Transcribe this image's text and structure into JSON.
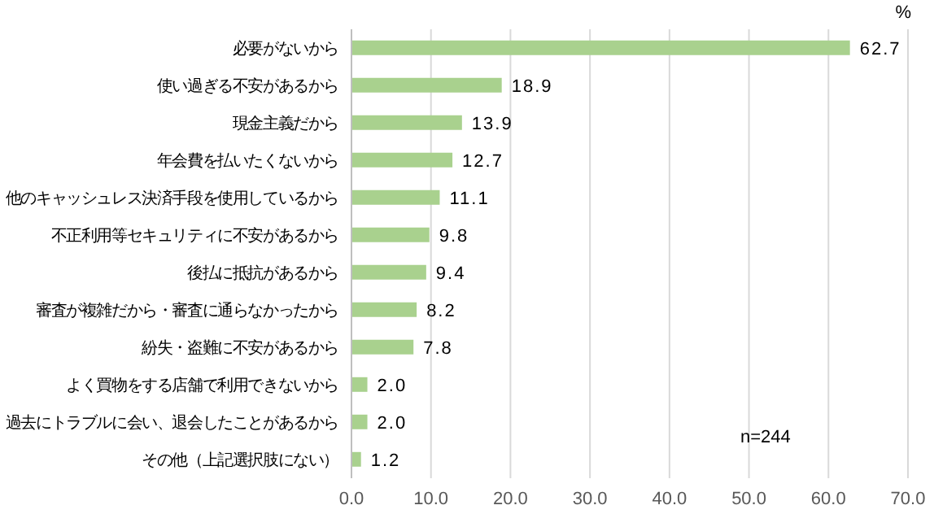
{
  "chart_data": {
    "type": "bar",
    "orientation": "horizontal",
    "xlabel": "%",
    "categories": [
      "必要がないから",
      "使い過ぎる不安があるから",
      "現金主義だから",
      "年会費を払いたくないから",
      "他のキャッシュレス決済手段を使用しているから",
      "不正利用等セキュリティに不安があるから",
      "後払に抵抗があるから",
      "審査が複雑だから・審査に通らなかったから",
      "紛失・盗難に不安があるから",
      "よく買物をする店舗で利用できないから",
      "過去にトラブルに会い、退会したことがあるから",
      "その他（上記選択肢にない）"
    ],
    "values": [
      62.7,
      18.9,
      13.9,
      12.7,
      11.1,
      9.8,
      9.4,
      8.2,
      7.8,
      2.0,
      2.0,
      1.2
    ],
    "value_labels": [
      "62.7",
      "18.9",
      "13.9",
      "12.7",
      "11.1",
      "9.8",
      "9.4",
      "8.2",
      "7.8",
      "2.0",
      "2.0",
      "1.2"
    ],
    "color": "#a9d18e",
    "xlim": [
      0,
      70
    ],
    "xticks": [
      {
        "value": 0,
        "label": "0.0"
      },
      {
        "value": 10,
        "label": "10.0"
      },
      {
        "value": 20,
        "label": "20.0"
      },
      {
        "value": 30,
        "label": "30.0"
      },
      {
        "value": 40,
        "label": "40.0"
      },
      {
        "value": 50,
        "label": "50.0"
      },
      {
        "value": 60,
        "label": "60.0"
      },
      {
        "value": 70,
        "label": "70.0"
      }
    ],
    "grid": "x",
    "annotations": [
      "n=244"
    ]
  }
}
